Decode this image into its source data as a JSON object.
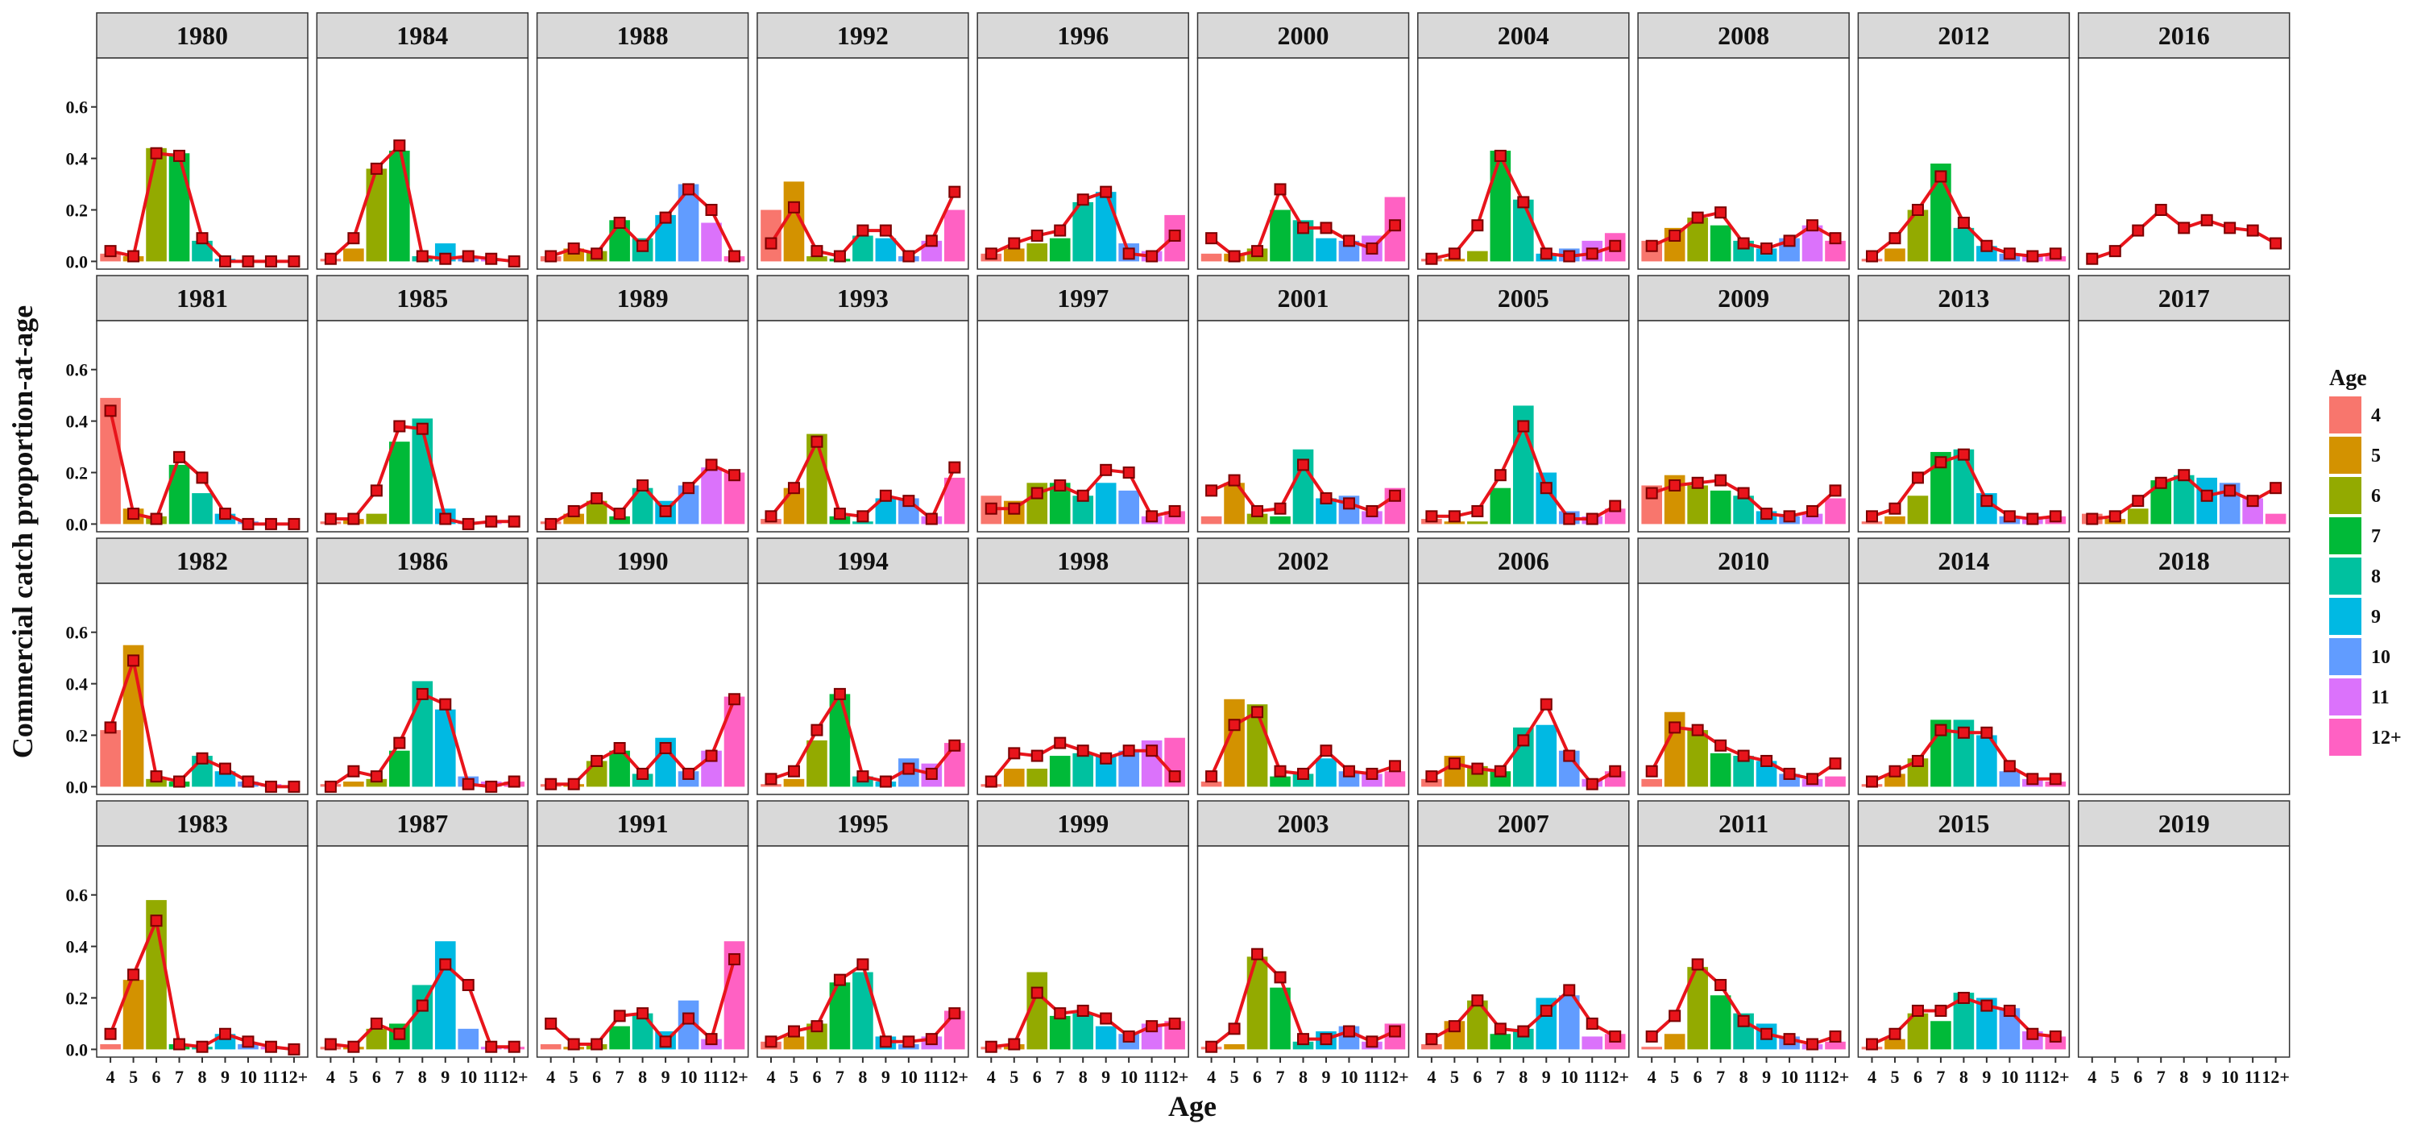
{
  "chart_data": {
    "type": "bar",
    "xlabel": "Age",
    "ylabel": "Commercial catch proportion-at-age",
    "ylim": [
      -0.03,
      0.79
    ],
    "y_ticks": [
      "0.0",
      "0.2",
      "0.4",
      "0.6"
    ],
    "categories": [
      "4",
      "5",
      "6",
      "7",
      "8",
      "9",
      "10",
      "11",
      "12+"
    ],
    "x_tick_labels": [
      "4",
      "5",
      "6",
      "7",
      "8",
      "9",
      "10",
      "11",
      "12+"
    ],
    "legend": {
      "title": "Age",
      "placement": "right",
      "entries": [
        "4",
        "5",
        "6",
        "7",
        "8",
        "9",
        "10",
        "11",
        "12+"
      ]
    },
    "colors": {
      "age_4": "#F8766D",
      "age_5": "#D39200",
      "age_6": "#93AA00",
      "age_7": "#00BA38",
      "age_8": "#00C19F",
      "age_9": "#00B9E3",
      "age_10": "#619CFF",
      "age_11": "#DB72FB",
      "age_12plus": "#FF61C3",
      "line": "#E8141B",
      "point_fill": "#E8141B",
      "point_stroke": "#7A0000",
      "strip_bg": "#D9D9D9",
      "panel_border": "#333333"
    },
    "bars_series": "observed proportion-at-age (bars)",
    "line_series": "predicted proportion-at-age (line with square points)",
    "panels": [
      {
        "year": "1980",
        "bars": [
          0.03,
          0.02,
          0.44,
          0.42,
          0.08,
          0.01,
          0.0,
          0.0,
          0.0
        ],
        "line": [
          0.04,
          0.02,
          0.42,
          0.41,
          0.09,
          0.0,
          0.0,
          0.0,
          0.0
        ]
      },
      {
        "year": "1981",
        "bars": [
          0.49,
          0.06,
          0.03,
          0.23,
          0.12,
          0.04,
          0.01,
          0.0,
          0.0
        ],
        "line": [
          0.44,
          0.04,
          0.02,
          0.26,
          0.18,
          0.04,
          0.0,
          0.0,
          0.0
        ]
      },
      {
        "year": "1982",
        "bars": [
          0.22,
          0.55,
          0.03,
          0.02,
          0.12,
          0.06,
          0.02,
          0.01,
          0.0
        ],
        "line": [
          0.23,
          0.49,
          0.04,
          0.02,
          0.11,
          0.07,
          0.02,
          0.0,
          0.0
        ]
      },
      {
        "year": "1983",
        "bars": [
          0.02,
          0.27,
          0.58,
          0.02,
          0.01,
          0.06,
          0.02,
          0.01,
          0.0
        ],
        "line": [
          0.06,
          0.29,
          0.5,
          0.02,
          0.01,
          0.06,
          0.03,
          0.01,
          0.0
        ]
      },
      {
        "year": "1984",
        "bars": [
          0.01,
          0.05,
          0.36,
          0.43,
          0.02,
          0.07,
          0.02,
          0.01,
          0.0
        ],
        "line": [
          0.01,
          0.09,
          0.36,
          0.45,
          0.02,
          0.01,
          0.02,
          0.01,
          0.0
        ]
      },
      {
        "year": "1985",
        "bars": [
          0.01,
          0.02,
          0.04,
          0.32,
          0.41,
          0.06,
          0.01,
          0.01,
          0.0
        ],
        "line": [
          0.02,
          0.02,
          0.13,
          0.38,
          0.37,
          0.02,
          0.0,
          0.01,
          0.01
        ]
      },
      {
        "year": "1986",
        "bars": [
          0.01,
          0.02,
          0.03,
          0.14,
          0.41,
          0.3,
          0.04,
          0.02,
          0.02
        ],
        "line": [
          0.0,
          0.06,
          0.04,
          0.17,
          0.36,
          0.32,
          0.01,
          0.0,
          0.02
        ]
      },
      {
        "year": "1987",
        "bars": [
          0.01,
          0.01,
          0.08,
          0.1,
          0.25,
          0.42,
          0.08,
          0.01,
          0.01
        ],
        "line": [
          0.02,
          0.01,
          0.1,
          0.06,
          0.17,
          0.33,
          0.25,
          0.01,
          0.01
        ]
      },
      {
        "year": "1988",
        "bars": [
          0.02,
          0.05,
          0.04,
          0.16,
          0.09,
          0.18,
          0.3,
          0.15,
          0.02
        ],
        "line": [
          0.02,
          0.05,
          0.03,
          0.15,
          0.06,
          0.17,
          0.28,
          0.2,
          0.02
        ]
      },
      {
        "year": "1989",
        "bars": [
          0.01,
          0.04,
          0.09,
          0.03,
          0.14,
          0.09,
          0.15,
          0.22,
          0.2
        ],
        "line": [
          0.0,
          0.05,
          0.1,
          0.04,
          0.15,
          0.05,
          0.14,
          0.23,
          0.19
        ]
      },
      {
        "year": "1990",
        "bars": [
          0.01,
          0.01,
          0.1,
          0.14,
          0.05,
          0.19,
          0.06,
          0.14,
          0.35
        ],
        "line": [
          0.01,
          0.01,
          0.1,
          0.15,
          0.05,
          0.15,
          0.05,
          0.12,
          0.34
        ]
      },
      {
        "year": "1991",
        "bars": [
          0.02,
          0.01,
          0.02,
          0.09,
          0.14,
          0.07,
          0.19,
          0.04,
          0.42
        ],
        "line": [
          0.1,
          0.02,
          0.02,
          0.13,
          0.14,
          0.03,
          0.12,
          0.04,
          0.35
        ]
      },
      {
        "year": "1992",
        "bars": [
          0.2,
          0.31,
          0.02,
          0.01,
          0.1,
          0.09,
          0.02,
          0.08,
          0.2
        ],
        "line": [
          0.07,
          0.21,
          0.04,
          0.02,
          0.12,
          0.12,
          0.02,
          0.08,
          0.27
        ]
      },
      {
        "year": "1993",
        "bars": [
          0.02,
          0.14,
          0.35,
          0.03,
          0.01,
          0.1,
          0.1,
          0.03,
          0.18
        ],
        "line": [
          0.03,
          0.14,
          0.32,
          0.04,
          0.03,
          0.11,
          0.09,
          0.02,
          0.22
        ]
      },
      {
        "year": "1994",
        "bars": [
          0.01,
          0.03,
          0.18,
          0.36,
          0.04,
          0.02,
          0.11,
          0.09,
          0.17
        ],
        "line": [
          0.03,
          0.06,
          0.22,
          0.36,
          0.04,
          0.02,
          0.07,
          0.05,
          0.16
        ]
      },
      {
        "year": "1995",
        "bars": [
          0.03,
          0.05,
          0.1,
          0.26,
          0.3,
          0.05,
          0.02,
          0.05,
          0.15
        ],
        "line": [
          0.03,
          0.07,
          0.09,
          0.27,
          0.33,
          0.03,
          0.03,
          0.04,
          0.14
        ]
      },
      {
        "year": "1996",
        "bars": [
          0.03,
          0.05,
          0.07,
          0.09,
          0.23,
          0.27,
          0.07,
          0.04,
          0.18
        ],
        "line": [
          0.03,
          0.07,
          0.1,
          0.12,
          0.24,
          0.27,
          0.03,
          0.02,
          0.1
        ]
      },
      {
        "year": "1997",
        "bars": [
          0.11,
          0.09,
          0.16,
          0.16,
          0.11,
          0.16,
          0.13,
          0.03,
          0.05
        ],
        "line": [
          0.06,
          0.06,
          0.12,
          0.15,
          0.11,
          0.21,
          0.2,
          0.03,
          0.05
        ]
      },
      {
        "year": "1998",
        "bars": [
          0.01,
          0.07,
          0.07,
          0.12,
          0.13,
          0.12,
          0.14,
          0.18,
          0.19
        ],
        "line": [
          0.02,
          0.13,
          0.12,
          0.17,
          0.14,
          0.11,
          0.14,
          0.14,
          0.04
        ]
      },
      {
        "year": "1999",
        "bars": [
          0.01,
          0.02,
          0.3,
          0.13,
          0.14,
          0.09,
          0.06,
          0.1,
          0.11
        ],
        "line": [
          0.01,
          0.02,
          0.22,
          0.14,
          0.15,
          0.12,
          0.05,
          0.09,
          0.1
        ]
      },
      {
        "year": "2000",
        "bars": [
          0.03,
          0.03,
          0.05,
          0.2,
          0.16,
          0.09,
          0.08,
          0.1,
          0.25
        ],
        "line": [
          0.09,
          0.02,
          0.04,
          0.28,
          0.13,
          0.13,
          0.08,
          0.05,
          0.14
        ]
      },
      {
        "year": "2001",
        "bars": [
          0.03,
          0.16,
          0.04,
          0.03,
          0.29,
          0.1,
          0.11,
          0.05,
          0.14
        ],
        "line": [
          0.13,
          0.17,
          0.05,
          0.06,
          0.23,
          0.1,
          0.08,
          0.05,
          0.11
        ]
      },
      {
        "year": "2002",
        "bars": [
          0.02,
          0.34,
          0.32,
          0.04,
          0.05,
          0.11,
          0.06,
          0.05,
          0.06
        ],
        "line": [
          0.04,
          0.24,
          0.29,
          0.06,
          0.05,
          0.14,
          0.06,
          0.05,
          0.08
        ]
      },
      {
        "year": "2003",
        "bars": [
          0.01,
          0.02,
          0.36,
          0.24,
          0.03,
          0.07,
          0.09,
          0.03,
          0.1
        ],
        "line": [
          0.01,
          0.08,
          0.37,
          0.28,
          0.04,
          0.04,
          0.07,
          0.03,
          0.07
        ]
      },
      {
        "year": "2004",
        "bars": [
          0.01,
          0.01,
          0.04,
          0.43,
          0.24,
          0.03,
          0.05,
          0.08,
          0.11
        ],
        "line": [
          0.01,
          0.03,
          0.14,
          0.41,
          0.23,
          0.03,
          0.02,
          0.03,
          0.06
        ]
      },
      {
        "year": "2005",
        "bars": [
          0.02,
          0.01,
          0.01,
          0.14,
          0.46,
          0.2,
          0.05,
          0.03,
          0.06
        ],
        "line": [
          0.03,
          0.03,
          0.05,
          0.19,
          0.38,
          0.14,
          0.02,
          0.02,
          0.07
        ]
      },
      {
        "year": "2006",
        "bars": [
          0.03,
          0.12,
          0.08,
          0.06,
          0.23,
          0.24,
          0.14,
          0.03,
          0.06
        ],
        "line": [
          0.04,
          0.09,
          0.07,
          0.06,
          0.18,
          0.32,
          0.12,
          0.01,
          0.06
        ]
      },
      {
        "year": "2007",
        "bars": [
          0.02,
          0.11,
          0.19,
          0.06,
          0.08,
          0.2,
          0.21,
          0.05,
          0.06
        ],
        "line": [
          0.04,
          0.09,
          0.19,
          0.08,
          0.07,
          0.15,
          0.23,
          0.1,
          0.05
        ]
      },
      {
        "year": "2008",
        "bars": [
          0.08,
          0.13,
          0.17,
          0.14,
          0.08,
          0.05,
          0.09,
          0.14,
          0.08
        ],
        "line": [
          0.06,
          0.1,
          0.17,
          0.19,
          0.07,
          0.05,
          0.08,
          0.14,
          0.09
        ]
      },
      {
        "year": "2009",
        "bars": [
          0.15,
          0.19,
          0.15,
          0.13,
          0.11,
          0.05,
          0.03,
          0.04,
          0.1
        ],
        "line": [
          0.12,
          0.15,
          0.16,
          0.17,
          0.12,
          0.04,
          0.03,
          0.05,
          0.13
        ]
      },
      {
        "year": "2010",
        "bars": [
          0.03,
          0.29,
          0.22,
          0.13,
          0.12,
          0.1,
          0.05,
          0.03,
          0.04
        ],
        "line": [
          0.06,
          0.23,
          0.22,
          0.16,
          0.12,
          0.1,
          0.05,
          0.03,
          0.09
        ]
      },
      {
        "year": "2011",
        "bars": [
          0.01,
          0.06,
          0.32,
          0.21,
          0.14,
          0.1,
          0.05,
          0.02,
          0.03
        ],
        "line": [
          0.05,
          0.13,
          0.33,
          0.25,
          0.11,
          0.06,
          0.04,
          0.02,
          0.05
        ]
      },
      {
        "year": "2012",
        "bars": [
          0.01,
          0.05,
          0.2,
          0.38,
          0.13,
          0.06,
          0.03,
          0.03,
          0.02
        ],
        "line": [
          0.02,
          0.09,
          0.2,
          0.33,
          0.15,
          0.06,
          0.03,
          0.02,
          0.03
        ]
      },
      {
        "year": "2013",
        "bars": [
          0.01,
          0.03,
          0.11,
          0.28,
          0.29,
          0.12,
          0.03,
          0.02,
          0.03
        ],
        "line": [
          0.03,
          0.06,
          0.18,
          0.24,
          0.27,
          0.09,
          0.03,
          0.02,
          0.03
        ]
      },
      {
        "year": "2014",
        "bars": [
          0.01,
          0.05,
          0.11,
          0.26,
          0.26,
          0.2,
          0.06,
          0.03,
          0.02
        ],
        "line": [
          0.02,
          0.06,
          0.1,
          0.22,
          0.21,
          0.21,
          0.08,
          0.03,
          0.03
        ]
      },
      {
        "year": "2015",
        "bars": [
          0.01,
          0.04,
          0.14,
          0.11,
          0.22,
          0.2,
          0.16,
          0.07,
          0.05
        ],
        "line": [
          0.02,
          0.06,
          0.15,
          0.15,
          0.2,
          0.17,
          0.15,
          0.06,
          0.05
        ]
      },
      {
        "year": "2016",
        "bars": [
          0.0,
          0.0,
          0.0,
          0.0,
          0.0,
          0.0,
          0.0,
          0.0,
          0.0
        ],
        "line": [
          0.01,
          0.04,
          0.12,
          0.2,
          0.13,
          0.16,
          0.13,
          0.12,
          0.07
        ]
      },
      {
        "year": "2017",
        "bars": [
          0.04,
          0.02,
          0.06,
          0.17,
          0.19,
          0.18,
          0.16,
          0.1,
          0.04
        ],
        "line": [
          0.02,
          0.03,
          0.09,
          0.16,
          0.19,
          0.11,
          0.13,
          0.09,
          0.14
        ]
      },
      {
        "year": "2018",
        "bars": [],
        "line": []
      },
      {
        "year": "2019",
        "bars": [],
        "line": []
      }
    ]
  }
}
